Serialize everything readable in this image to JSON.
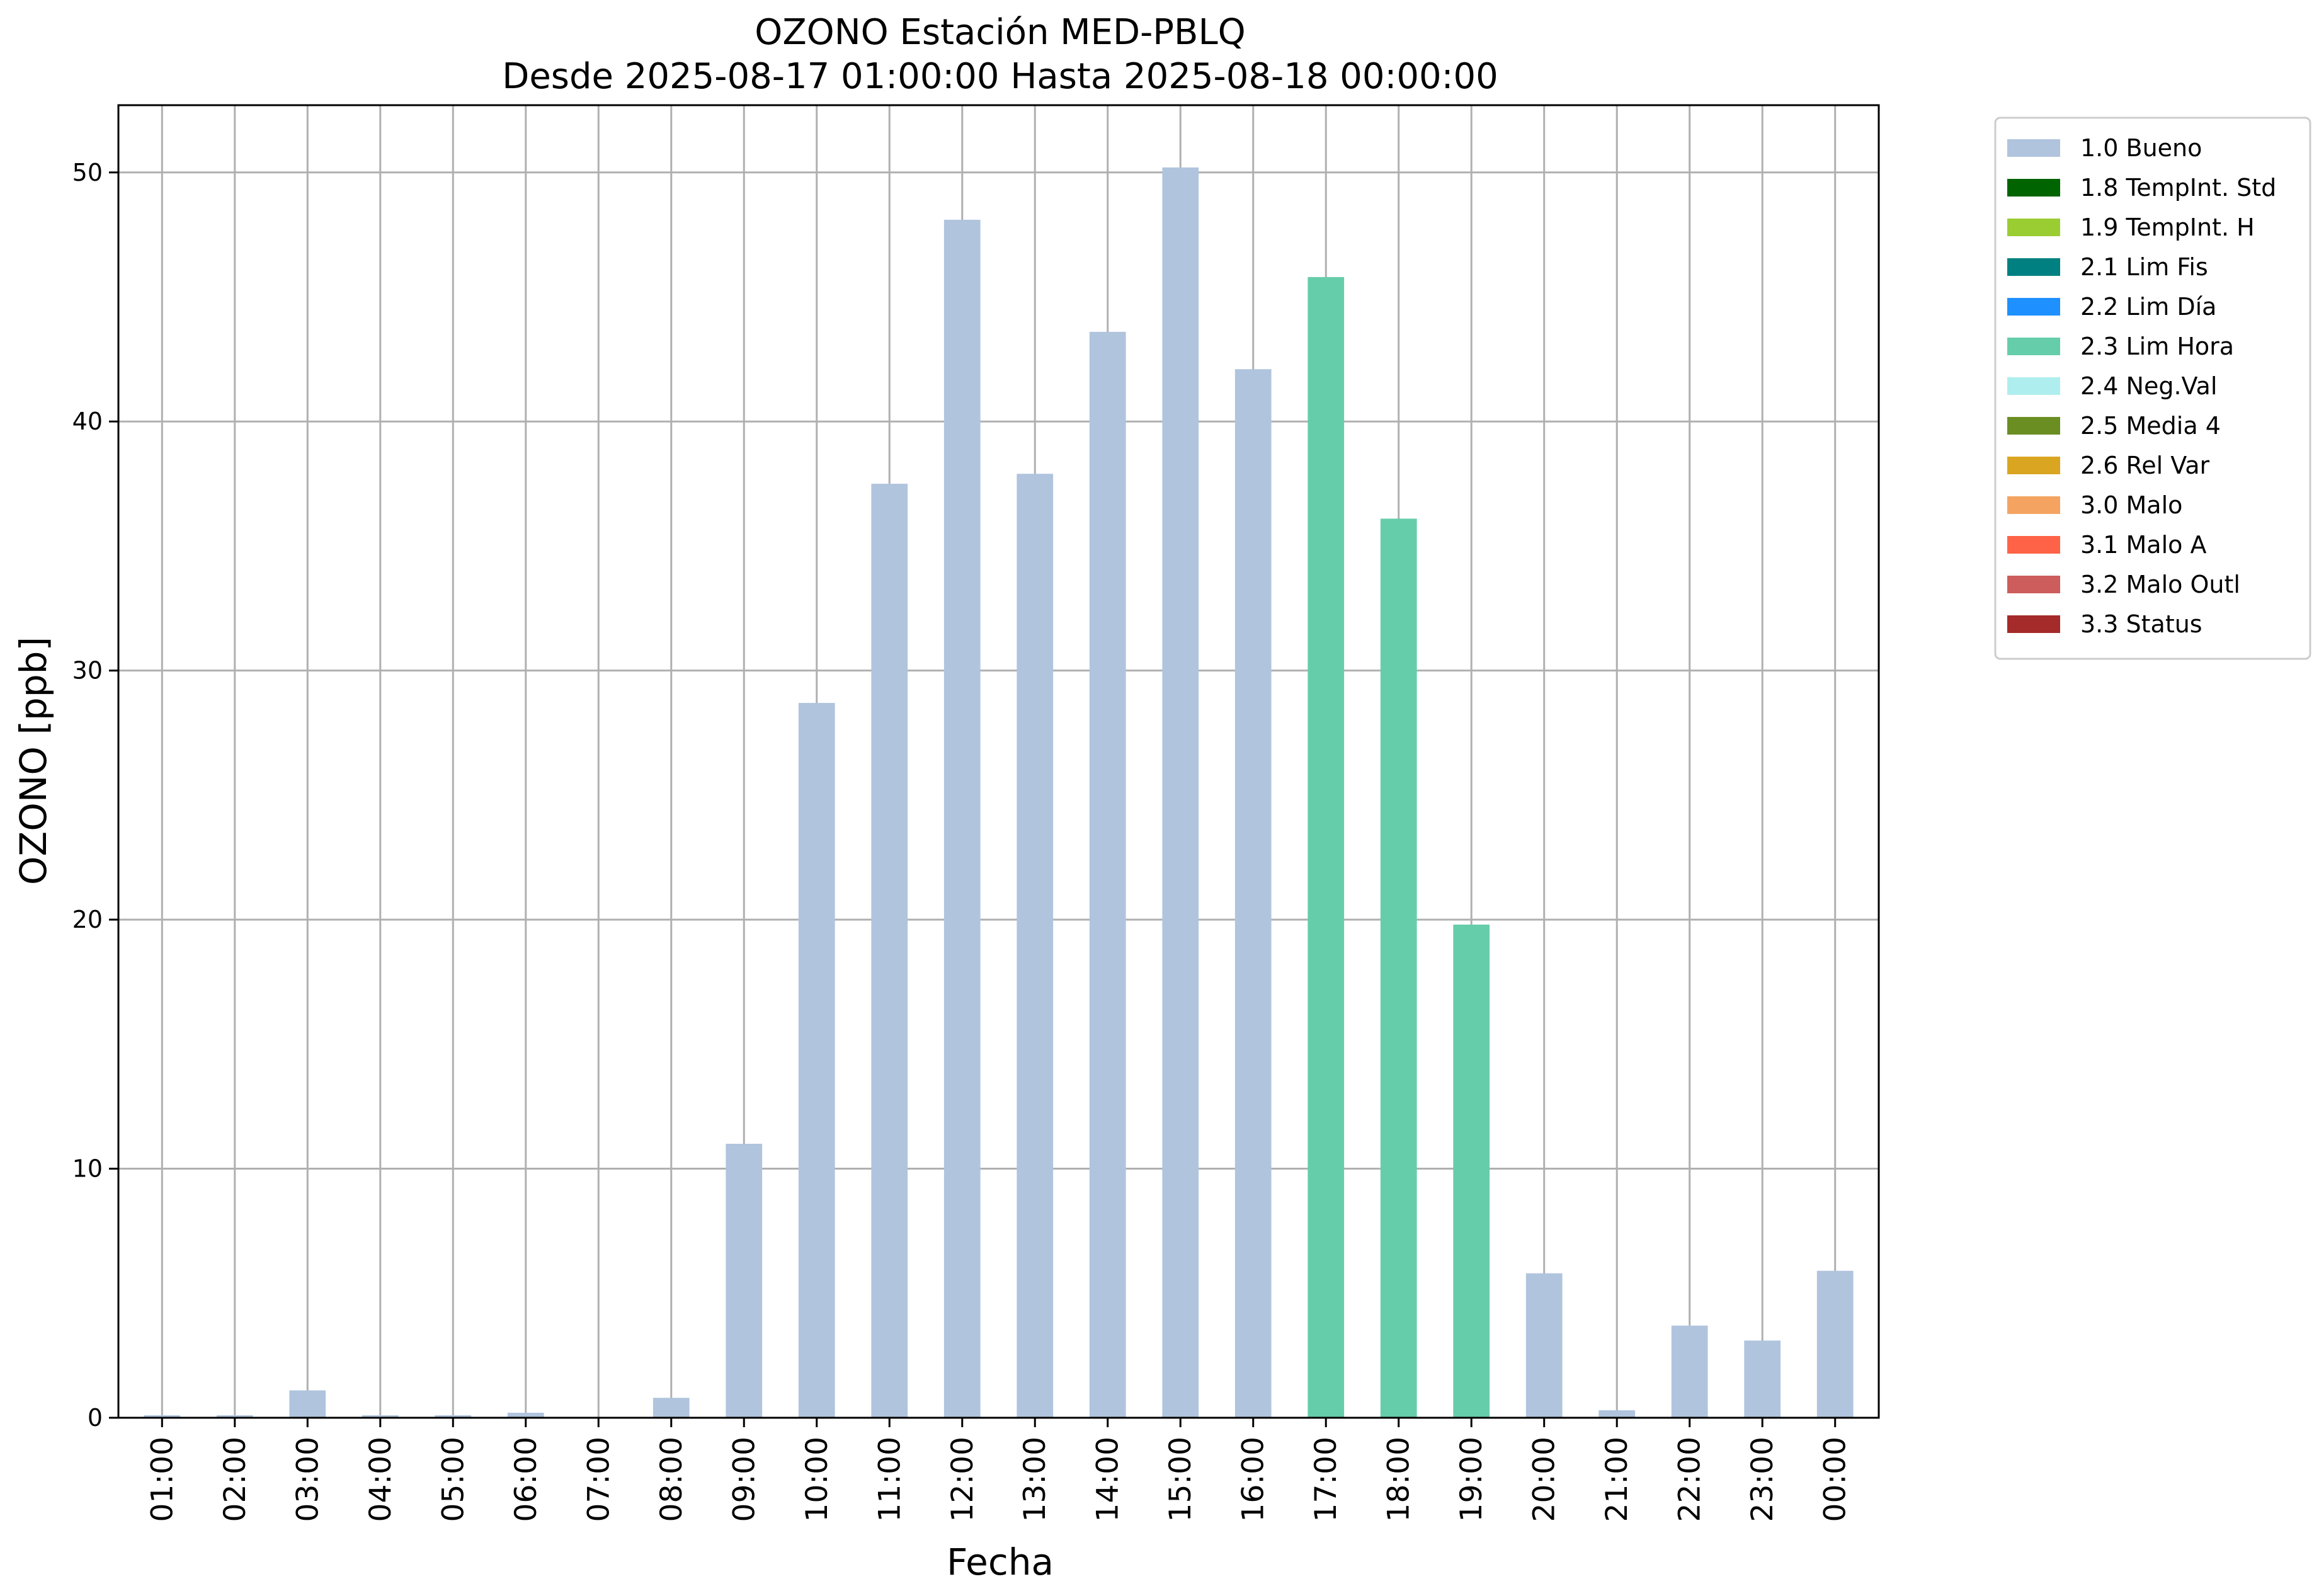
{
  "chart_data": {
    "type": "bar",
    "title": "OZONO Estación MED-PBLQ",
    "subtitle": "Desde 2025-08-17 01:00:00 Hasta 2025-08-18 00:00:00",
    "xlabel": "Fecha",
    "ylabel": "OZONO [ppb]",
    "ylim": [
      0,
      52.7
    ],
    "yticks": [
      0,
      10,
      20,
      30,
      40,
      50
    ],
    "grid": true,
    "legend_position": "outside-right",
    "categories": [
      "01:00",
      "02:00",
      "03:00",
      "04:00",
      "05:00",
      "06:00",
      "07:00",
      "08:00",
      "09:00",
      "10:00",
      "11:00",
      "12:00",
      "13:00",
      "14:00",
      "15:00",
      "16:00",
      "17:00",
      "18:00",
      "19:00",
      "20:00",
      "21:00",
      "22:00",
      "23:00",
      "00:00"
    ],
    "values": [
      0.1,
      0.1,
      1.1,
      0.1,
      0.1,
      0.2,
      0.0,
      0.8,
      11.0,
      28.7,
      37.5,
      48.1,
      37.9,
      43.6,
      50.2,
      42.1,
      45.8,
      36.1,
      19.8,
      5.8,
      0.3,
      3.7,
      3.1,
      5.9
    ],
    "flags": [
      "1.0 Bueno",
      "1.0 Bueno",
      "1.0 Bueno",
      "1.0 Bueno",
      "1.0 Bueno",
      "1.0 Bueno",
      "1.0 Bueno",
      "1.0 Bueno",
      "1.0 Bueno",
      "1.0 Bueno",
      "1.0 Bueno",
      "1.0 Bueno",
      "1.0 Bueno",
      "1.0 Bueno",
      "1.0 Bueno",
      "1.0 Bueno",
      "2.3 Lim Hora",
      "2.3 Lim Hora",
      "2.3 Lim Hora",
      "1.0 Bueno",
      "1.0 Bueno",
      "1.0 Bueno",
      "1.0 Bueno",
      "1.0 Bueno"
    ],
    "legend": [
      {
        "label": "1.0 Bueno",
        "color": "#b0c4de"
      },
      {
        "label": "1.8 TempInt. Std",
        "color": "#006400"
      },
      {
        "label": "1.9 TempInt. H",
        "color": "#9acd32"
      },
      {
        "label": "2.1 Lim Fis",
        "color": "#008080"
      },
      {
        "label": "2.2 Lim Día",
        "color": "#1e90ff"
      },
      {
        "label": "2.3 Lim Hora",
        "color": "#66cdaa"
      },
      {
        "label": "2.4 Neg.Val",
        "color": "#afeeee"
      },
      {
        "label": "2.5 Media 4",
        "color": "#6b8e23"
      },
      {
        "label": "2.6 Rel Var",
        "color": "#daa520"
      },
      {
        "label": "3.0 Malo",
        "color": "#f4a460"
      },
      {
        "label": "3.1 Malo A",
        "color": "#ff6347"
      },
      {
        "label": "3.2 Malo Outl",
        "color": "#cd5c5c"
      },
      {
        "label": "3.3 Status",
        "color": "#a52a2a"
      }
    ]
  }
}
